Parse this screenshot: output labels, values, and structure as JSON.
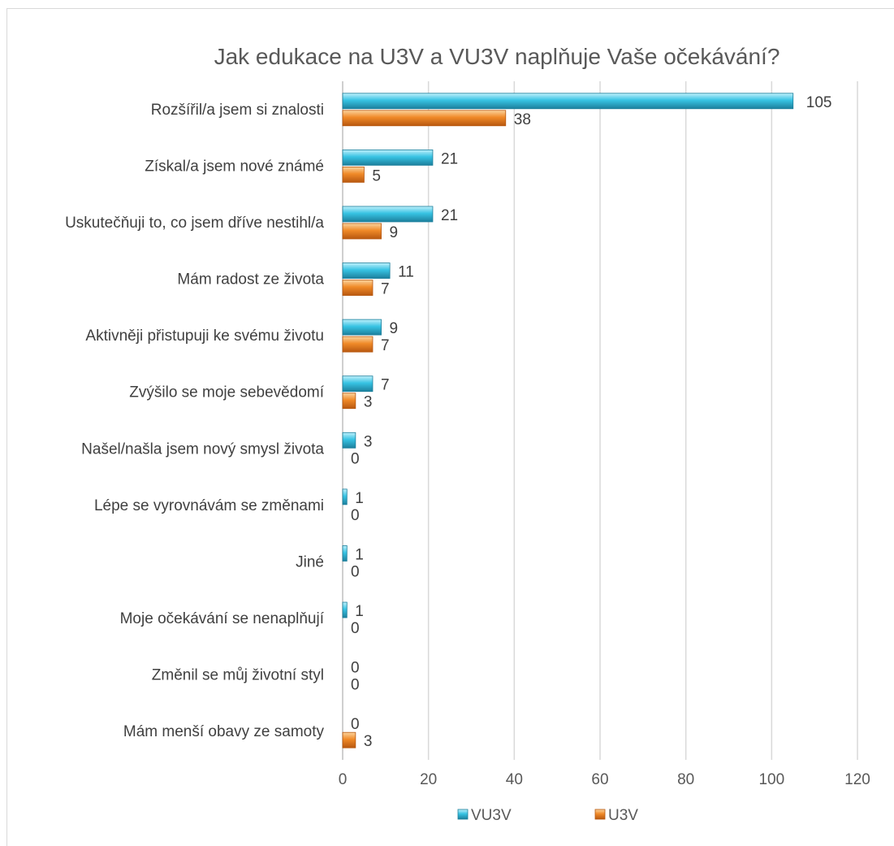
{
  "chart_data": {
    "type": "bar",
    "orientation": "horizontal",
    "title": "Jak edukace na U3V a VU3V naplňuje Vaše očekávání?",
    "categories": [
      "Rozšířil/a jsem si znalosti",
      "Získal/a jsem nové známé",
      "Uskutečňuji to, co jsem dříve nestihl/a",
      "Mám radost ze života",
      "Aktivněji přistupuji ke svému životu",
      "Zvýšilo se moje sebevědomí",
      "Našel/našla jsem nový smysl života",
      "Lépe se vyrovnávám se změnami",
      "Jiné",
      "Moje očekávání se nenaplňují",
      "Změnil se můj životní styl",
      "Mám menší obavy ze samoty"
    ],
    "series": [
      {
        "name": "VU3V",
        "color": "#2f9fc0",
        "values": [
          105,
          21,
          21,
          11,
          9,
          7,
          3,
          1,
          1,
          1,
          0,
          0
        ]
      },
      {
        "name": "U3V",
        "color": "#e07b22",
        "values": [
          38,
          5,
          9,
          7,
          7,
          3,
          0,
          0,
          0,
          0,
          0,
          3
        ]
      }
    ],
    "xlim": [
      0,
      120
    ],
    "xticks": [
      "0",
      "20",
      "40",
      "60",
      "80",
      "100",
      "120"
    ],
    "grid": true,
    "legend_position": "bottom"
  }
}
